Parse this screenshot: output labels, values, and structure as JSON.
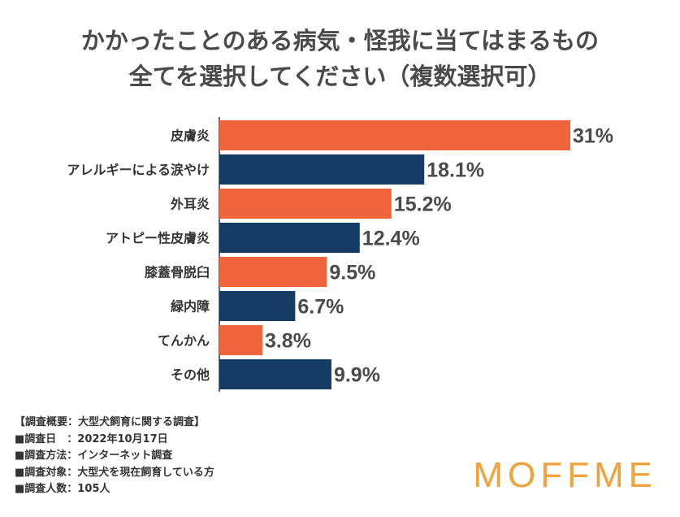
{
  "title": {
    "line1": "かかったことのある病気・怪我に当てはまるもの",
    "line2": "全てを選択してください（複数選択可）"
  },
  "colors": {
    "orange": "#f0643c",
    "navy": "#143c64",
    "axis": "#333333"
  },
  "chart_data": {
    "type": "bar",
    "orientation": "horizontal",
    "categories": [
      "皮膚炎",
      "アレルギーによる涙やけ",
      "外耳炎",
      "アトピー性皮膚炎",
      "膝蓋骨脱臼",
      "緑内障",
      "てんかん",
      "その他"
    ],
    "values": [
      31,
      18.1,
      15.2,
      12.4,
      9.5,
      6.7,
      3.8,
      9.9
    ],
    "value_labels": [
      "31%",
      "18.1%",
      "15.2%",
      "12.4%",
      "9.5%",
      "6.7%",
      "3.8%",
      "9.9%"
    ],
    "bar_colors": [
      "#f0643c",
      "#143c64",
      "#f0643c",
      "#143c64",
      "#f0643c",
      "#143c64",
      "#f0643c",
      "#143c64"
    ],
    "xlim": [
      0,
      31
    ],
    "grid": false,
    "legend": "none"
  },
  "notes": [
    "【調査概要：大型犬飼育に関する調査】",
    "■調査日　：2022年10月17日",
    "■調査方法：インターネット調査",
    "■調査対象：大型犬を現在飼育している方",
    "■調査人数：105人"
  ],
  "logo": "MOFFME"
}
